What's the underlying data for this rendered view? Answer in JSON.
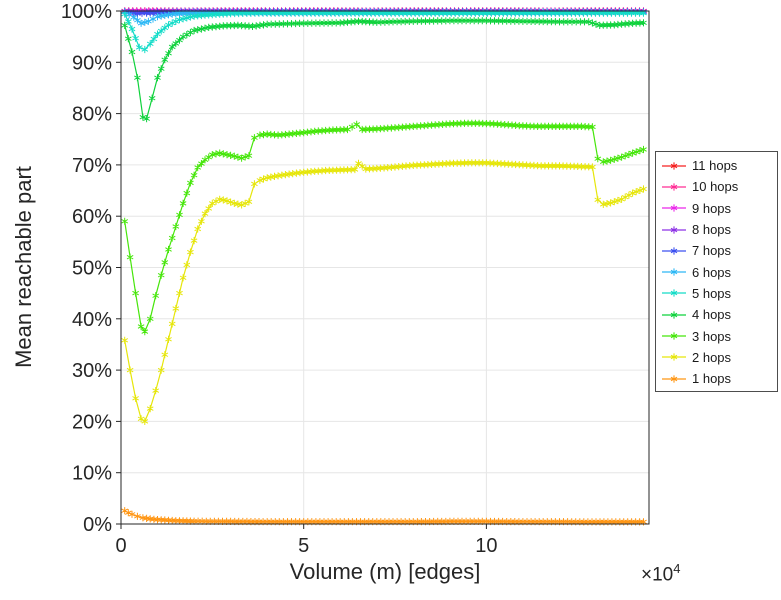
{
  "figure": {
    "background": "#ffffff",
    "axis_color": "#262626",
    "grid_color": "#e6e6e6",
    "tick_label_color": "#262626"
  },
  "axes": {
    "ylabel": "Mean reachable part",
    "xlabel": "Volume (m) [edges]",
    "x_multiplier_base": "×10",
    "x_multiplier_exp": "4",
    "xlim": [
      0,
      14.45
    ],
    "ylim": [
      0,
      100
    ],
    "x_ticks": [
      0,
      5,
      10
    ],
    "x_tick_labels": [
      "0",
      "5",
      "10"
    ],
    "y_ticks": [
      0,
      10,
      20,
      30,
      40,
      50,
      60,
      70,
      80,
      90,
      100
    ],
    "y_tick_labels": [
      "0%",
      "10%",
      "20%",
      "30%",
      "40%",
      "50%",
      "60%",
      "70%",
      "80%",
      "90%",
      "100%"
    ],
    "grid": true
  },
  "chart_data": {
    "type": "line",
    "title": "",
    "xlabel": "Volume (m) [edges]",
    "ylabel": "Mean reachable part",
    "x_scale_note": "x values are in units of 10^4 edges",
    "xlim": [
      0,
      14.45
    ],
    "ylim": [
      0,
      100
    ],
    "grid": true,
    "marker": "*",
    "legend_position": "right-outside",
    "series": [
      {
        "name": "11 hops",
        "color": "#f52020",
        "x": [
          0.1,
          14.3
        ],
        "y": [
          100,
          100
        ]
      },
      {
        "name": "10 hops",
        "color": "#ff2d95",
        "x": [
          0.1,
          14.3
        ],
        "y": [
          100,
          100
        ]
      },
      {
        "name": "9 hops",
        "color": "#eb28eb",
        "x": [
          0.1,
          14.3
        ],
        "y": [
          99.95,
          99.95
        ]
      },
      {
        "name": "8 hops",
        "color": "#8d30e6",
        "x": [
          0.1,
          0.45,
          0.7,
          1.2,
          14.3
        ],
        "y": [
          99.9,
          99.75,
          99.8,
          99.9,
          99.9
        ]
      },
      {
        "name": "7 hops",
        "color": "#3c50f0",
        "x": [
          0.1,
          0.45,
          0.7,
          1.2,
          2.0,
          14.3
        ],
        "y": [
          99.85,
          99.5,
          99.6,
          99.75,
          99.8,
          99.8
        ]
      },
      {
        "name": "6 hops",
        "color": "#2db8f5",
        "x": [
          0.1,
          0.35,
          0.55,
          0.75,
          1.0,
          1.5,
          2.0,
          3.0,
          14.3
        ],
        "y": [
          99.8,
          98.8,
          97.6,
          98.0,
          98.9,
          99.5,
          99.6,
          99.7,
          99.7
        ]
      },
      {
        "name": "5 hops",
        "color": "#14dcc8",
        "x": [
          0.1,
          0.3,
          0.5,
          0.65,
          0.8,
          1.0,
          1.3,
          1.6,
          2.0,
          2.5,
          3.0,
          4.0,
          14.3
        ],
        "y": [
          99.4,
          96.5,
          92.9,
          92.5,
          93.6,
          95.5,
          97.3,
          98.3,
          99.0,
          99.3,
          99.5,
          99.6,
          99.6
        ]
      },
      {
        "name": "4 hops",
        "color": "#0fd23c",
        "x": [
          0.1,
          0.3,
          0.45,
          0.6,
          0.7,
          0.85,
          1.0,
          1.2,
          1.4,
          1.7,
          2.0,
          2.4,
          2.8,
          3.2,
          3.6,
          4.0,
          5.0,
          6.0,
          6.5,
          7.0,
          8.0,
          9.0,
          10.0,
          11.0,
          12.0,
          12.8,
          13.1,
          13.5,
          14.0,
          14.3
        ],
        "y": [
          97.2,
          92.0,
          87.0,
          79.3,
          79.0,
          83.0,
          87.0,
          90.5,
          93.0,
          95.0,
          96.2,
          96.8,
          97.1,
          97.2,
          97.0,
          97.4,
          97.6,
          97.7,
          98.0,
          97.8,
          98.0,
          98.1,
          98.1,
          98.0,
          97.9,
          97.9,
          97.2,
          97.3,
          97.6,
          97.7
        ]
      },
      {
        "name": "3 hops",
        "color": "#46e60a",
        "x": [
          0.1,
          0.25,
          0.4,
          0.55,
          0.65,
          0.8,
          0.95,
          1.1,
          1.3,
          1.5,
          1.7,
          1.9,
          2.1,
          2.3,
          2.5,
          2.7,
          2.9,
          3.1,
          3.3,
          3.5,
          3.65,
          3.8,
          4.0,
          4.3,
          4.6,
          5.0,
          5.4,
          5.8,
          6.2,
          6.45,
          6.6,
          7.0,
          7.4,
          7.8,
          8.2,
          8.6,
          9.0,
          9.4,
          9.8,
          10.2,
          10.6,
          11.0,
          11.4,
          11.8,
          12.2,
          12.6,
          12.9,
          13.05,
          13.2,
          13.4,
          13.7,
          14.0,
          14.3
        ],
        "y": [
          59.0,
          52.0,
          45.0,
          38.5,
          37.5,
          40.0,
          44.5,
          48.5,
          53.5,
          58.0,
          62.5,
          66.5,
          69.5,
          71.0,
          72.0,
          72.3,
          72.0,
          71.7,
          71.3,
          71.8,
          75.3,
          75.8,
          76.0,
          75.8,
          76.0,
          76.3,
          76.6,
          76.8,
          76.9,
          77.9,
          76.9,
          77.0,
          77.2,
          77.4,
          77.6,
          77.8,
          78.0,
          78.1,
          78.1,
          78.0,
          77.8,
          77.6,
          77.5,
          77.5,
          77.5,
          77.5,
          77.4,
          71.2,
          70.6,
          70.9,
          71.5,
          72.3,
          73.0
        ]
      },
      {
        "name": "2 hops",
        "color": "#e6e60a",
        "x": [
          0.1,
          0.25,
          0.4,
          0.55,
          0.65,
          0.8,
          0.95,
          1.1,
          1.3,
          1.5,
          1.7,
          1.9,
          2.1,
          2.3,
          2.5,
          2.7,
          2.9,
          3.1,
          3.3,
          3.5,
          3.65,
          3.8,
          4.0,
          4.4,
          4.8,
          5.2,
          5.6,
          6.0,
          6.4,
          6.5,
          6.7,
          7.0,
          7.5,
          8.0,
          8.5,
          9.0,
          9.5,
          10.0,
          10.5,
          11.0,
          11.5,
          12.0,
          12.5,
          12.9,
          13.05,
          13.2,
          13.4,
          13.7,
          14.0,
          14.3
        ],
        "y": [
          35.8,
          30.0,
          24.5,
          20.5,
          20.0,
          22.5,
          26.0,
          30.0,
          36.0,
          42.0,
          48.0,
          53.0,
          57.5,
          60.5,
          62.5,
          63.3,
          63.0,
          62.5,
          62.2,
          62.8,
          66.3,
          67.0,
          67.5,
          68.0,
          68.4,
          68.7,
          68.9,
          69.0,
          69.1,
          70.3,
          69.2,
          69.3,
          69.6,
          69.9,
          70.1,
          70.3,
          70.4,
          70.4,
          70.2,
          70.0,
          69.8,
          69.8,
          69.7,
          69.6,
          63.2,
          62.3,
          62.6,
          63.3,
          64.5,
          65.3
        ]
      },
      {
        "name": "1 hops",
        "color": "#ff9614",
        "x": [
          0.1,
          0.2,
          0.3,
          0.45,
          0.6,
          0.8,
          1.0,
          1.5,
          2.0,
          3.0,
          4.0,
          5.0,
          6.0,
          7.0,
          8.0,
          9.0,
          10.0,
          11.0,
          12.0,
          13.0,
          14.3
        ],
        "y": [
          2.6,
          2.2,
          1.9,
          1.5,
          1.2,
          1.0,
          0.85,
          0.65,
          0.55,
          0.5,
          0.45,
          0.45,
          0.45,
          0.45,
          0.45,
          0.5,
          0.5,
          0.45,
          0.45,
          0.4,
          0.4
        ]
      }
    ]
  }
}
